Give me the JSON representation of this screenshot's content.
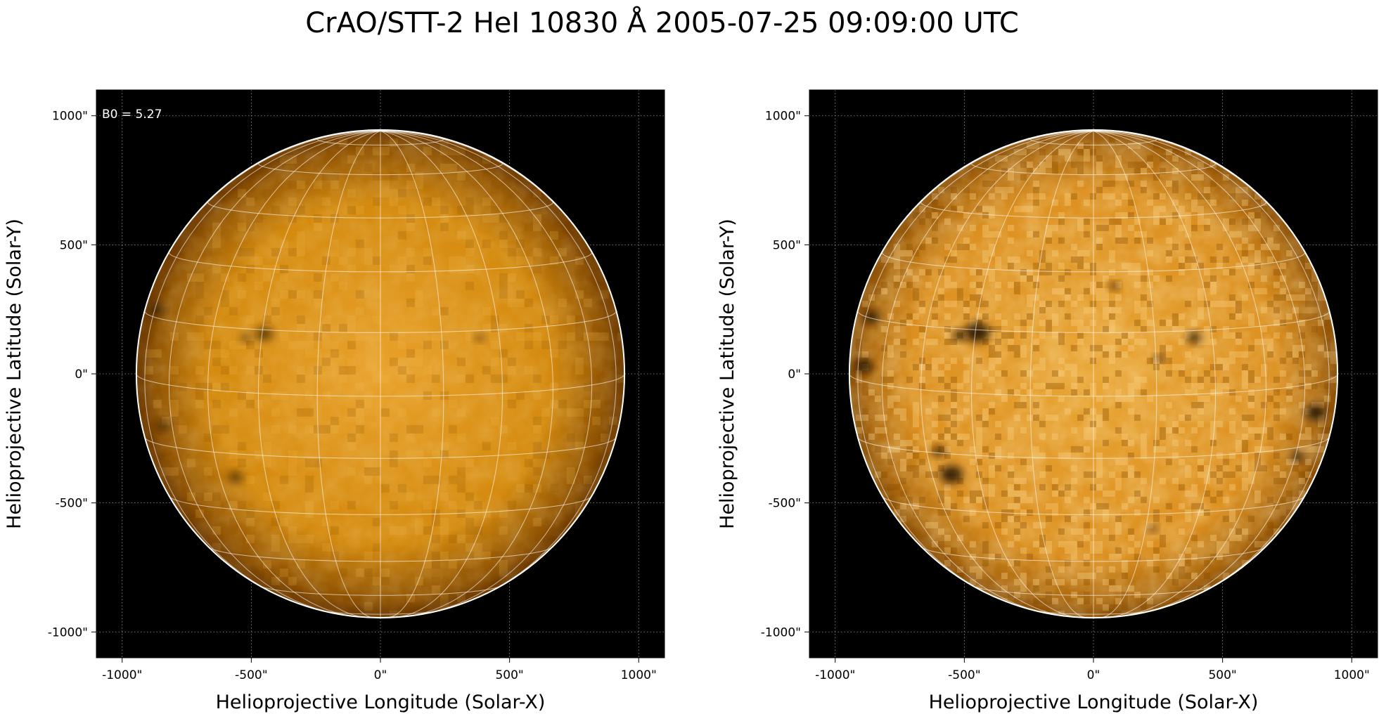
{
  "figure": {
    "title": "CrAO/STT-2 HeI 10830 Å 2005-07-25 09:09:00 UTC"
  },
  "axes": {
    "xlabel": "Helioprojective Longitude (Solar-X)",
    "ylabel": "Helioprojective Latitude (Solar-Y)",
    "range": [
      -1100,
      1100
    ],
    "tick_values": [
      -1000,
      -500,
      0,
      500,
      1000
    ],
    "tick_labels": [
      "-1000\"",
      "-500\"",
      "0\"",
      "500\"",
      "1000\""
    ],
    "grid": true
  },
  "sun": {
    "radius_arcsec": 945,
    "b0_deg": 5.27,
    "disk_color": "#d98c0c",
    "limb_color": "#5c2e00",
    "grid_color": "#ffffff"
  },
  "panels": [
    {
      "name": "left",
      "annotation": "B0 = 5.27",
      "contrast": "low",
      "dark_features": [
        {
          "x": -450,
          "y": 155,
          "r": 32
        },
        {
          "x": -520,
          "y": 140,
          "r": 18
        },
        {
          "x": 385,
          "y": 140,
          "r": 16
        },
        {
          "x": -560,
          "y": -400,
          "r": 26
        },
        {
          "x": -870,
          "y": 250,
          "r": 30
        },
        {
          "x": -840,
          "y": -200,
          "r": 24
        }
      ]
    },
    {
      "name": "right",
      "annotation": "",
      "contrast": "high",
      "dark_features": [
        {
          "x": -450,
          "y": 160,
          "r": 45
        },
        {
          "x": -520,
          "y": 150,
          "r": 22
        },
        {
          "x": 390,
          "y": 140,
          "r": 24
        },
        {
          "x": 250,
          "y": 60,
          "r": 14
        },
        {
          "x": -550,
          "y": -390,
          "r": 40
        },
        {
          "x": -600,
          "y": -300,
          "r": 22
        },
        {
          "x": -890,
          "y": 30,
          "r": 32
        },
        {
          "x": -860,
          "y": 220,
          "r": 28
        },
        {
          "x": 860,
          "y": -150,
          "r": 36
        },
        {
          "x": 790,
          "y": -320,
          "r": 22
        },
        {
          "x": 80,
          "y": 340,
          "r": 16
        },
        {
          "x": 230,
          "y": -600,
          "r": 14
        }
      ]
    }
  ]
}
